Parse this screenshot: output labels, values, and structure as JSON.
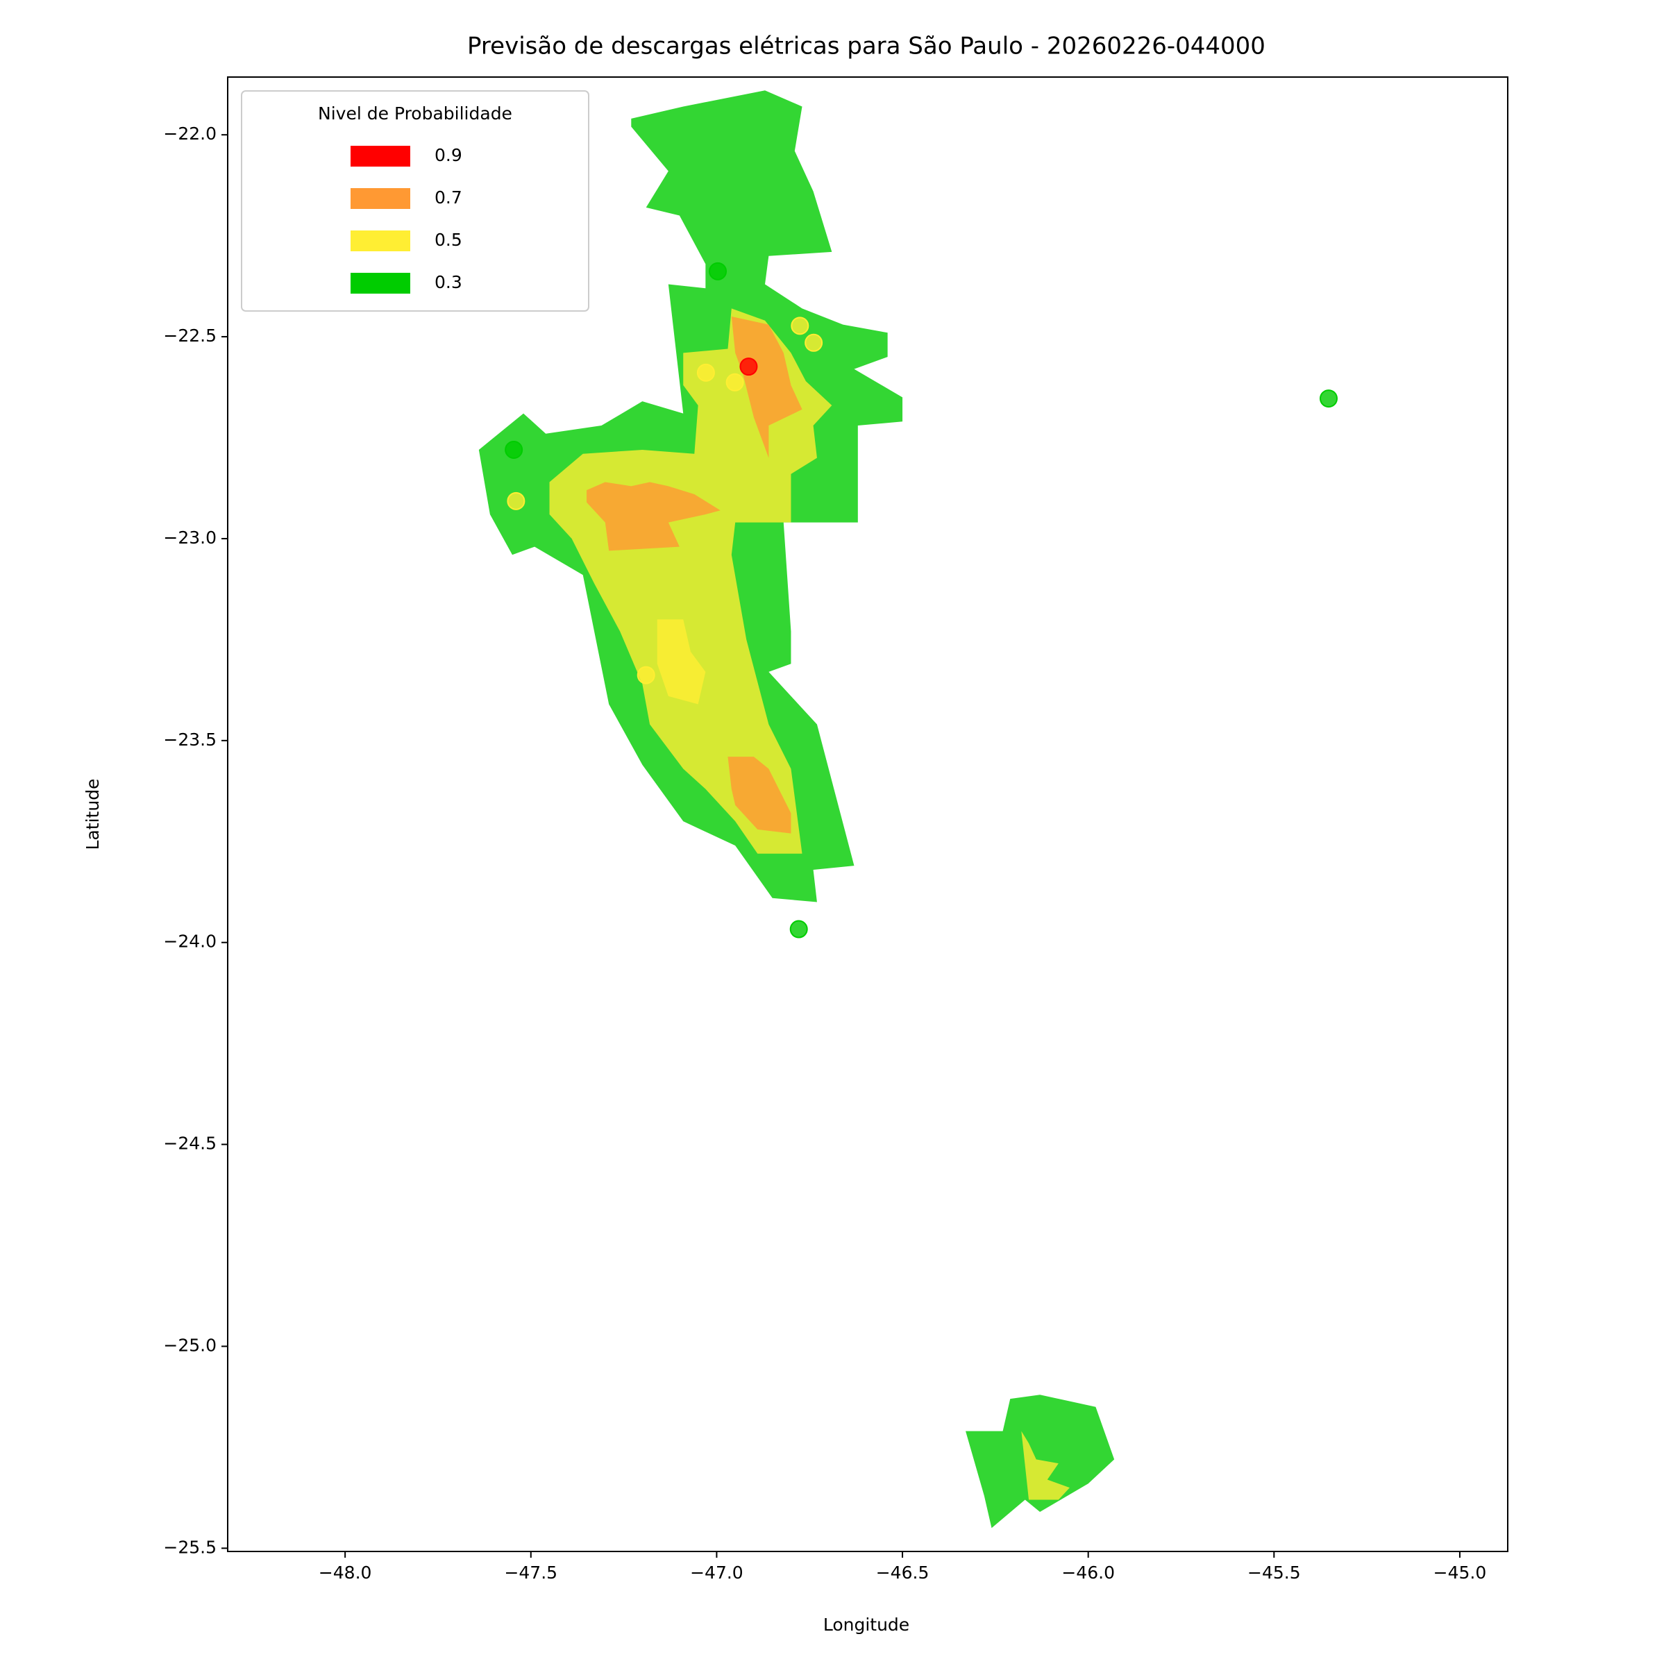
{
  "chart_data": {
    "type": "contour",
    "title": "Previsão de descargas elétricas para São Paulo - 20260226-044000",
    "xlabel": "Longitude",
    "ylabel": "Latitude",
    "xlim": [
      -48.316,
      -44.871
    ],
    "ylim": [
      -25.508,
      -21.857
    ],
    "xticks": [
      {
        "value": -48,
        "label": "−48.0"
      },
      {
        "value": -47.5,
        "label": "−47.5"
      },
      {
        "value": -47,
        "label": "−47.0"
      },
      {
        "value": -46.5,
        "label": "−46.5"
      },
      {
        "value": -46,
        "label": "−46.0"
      },
      {
        "value": -45.5,
        "label": "−45.5"
      },
      {
        "value": -45,
        "label": "−45.0"
      }
    ],
    "yticks": [
      {
        "value": -22,
        "label": "−22.0"
      },
      {
        "value": -22.5,
        "label": "−22.5"
      },
      {
        "value": -23,
        "label": "−23.0"
      },
      {
        "value": -23.5,
        "label": "−23.5"
      },
      {
        "value": -24,
        "label": "−24.0"
      },
      {
        "value": -24.5,
        "label": "−24.5"
      },
      {
        "value": -25,
        "label": "−25.0"
      },
      {
        "value": -25.5,
        "label": "−25.5"
      }
    ],
    "legend": {
      "title": "Nivel de Probabilidade",
      "loc": "upper left"
    },
    "levels": [
      0.9,
      0.7,
      0.5,
      0.3
    ],
    "colors": [
      "#ff0000",
      "#ff9933",
      "#ffee33",
      "#00cc00"
    ],
    "opacity": 0.8,
    "regions": [
      {
        "level": 0.3,
        "points": [
          [
            -47.23,
            -21.96
          ],
          [
            -47.09,
            -21.93
          ],
          [
            -46.87,
            -21.89
          ],
          [
            -46.77,
            -21.93
          ],
          [
            -46.79,
            -22.04
          ],
          [
            -46.74,
            -22.14
          ],
          [
            -46.69,
            -22.29
          ],
          [
            -46.86,
            -22.3
          ],
          [
            -46.87,
            -22.37
          ],
          [
            -46.77,
            -22.43
          ],
          [
            -46.66,
            -22.47
          ],
          [
            -46.54,
            -22.49
          ],
          [
            -46.54,
            -22.55
          ],
          [
            -46.63,
            -22.58
          ],
          [
            -46.5,
            -22.65
          ],
          [
            -46.5,
            -22.71
          ],
          [
            -46.62,
            -22.72
          ],
          [
            -46.62,
            -22.96
          ],
          [
            -46.82,
            -22.96
          ],
          [
            -46.8,
            -23.23
          ],
          [
            -46.8,
            -23.31
          ],
          [
            -46.86,
            -23.33
          ],
          [
            -46.73,
            -23.46
          ],
          [
            -46.63,
            -23.81
          ],
          [
            -46.74,
            -23.82
          ],
          [
            -46.73,
            -23.9
          ],
          [
            -46.85,
            -23.89
          ],
          [
            -46.95,
            -23.76
          ],
          [
            -47.09,
            -23.7
          ],
          [
            -47.2,
            -23.56
          ],
          [
            -47.29,
            -23.41
          ],
          [
            -47.36,
            -23.09
          ],
          [
            -47.49,
            -23.02
          ],
          [
            -47.55,
            -23.04
          ],
          [
            -47.61,
            -22.94
          ],
          [
            -47.64,
            -22.78
          ],
          [
            -47.52,
            -22.69
          ],
          [
            -47.46,
            -22.74
          ],
          [
            -47.31,
            -22.72
          ],
          [
            -47.2,
            -22.66
          ],
          [
            -47.09,
            -22.69
          ],
          [
            -47.13,
            -22.37
          ],
          [
            -47.03,
            -22.38
          ],
          [
            -47.03,
            -22.32
          ],
          [
            -47.1,
            -22.2
          ],
          [
            -47.19,
            -22.18
          ],
          [
            -47.13,
            -22.09
          ],
          [
            -47.23,
            -21.98
          ]
        ]
      },
      {
        "level": 0.3,
        "points": [
          [
            -46.33,
            -25.21
          ],
          [
            -46.23,
            -25.21
          ],
          [
            -46.21,
            -25.13
          ],
          [
            -46.13,
            -25.12
          ],
          [
            -45.98,
            -25.15
          ],
          [
            -45.93,
            -25.28
          ],
          [
            -46.0,
            -25.34
          ],
          [
            -46.13,
            -25.41
          ],
          [
            -46.17,
            -25.38
          ],
          [
            -46.26,
            -25.45
          ],
          [
            -46.28,
            -25.37
          ]
        ]
      },
      {
        "level": 0.5,
        "points": [
          [
            -47.09,
            -22.54
          ],
          [
            -46.97,
            -22.53
          ],
          [
            -46.96,
            -22.43
          ],
          [
            -46.87,
            -22.46
          ],
          [
            -46.8,
            -22.54
          ],
          [
            -46.76,
            -22.61
          ],
          [
            -46.69,
            -22.67
          ],
          [
            -46.74,
            -22.72
          ],
          [
            -46.73,
            -22.8
          ],
          [
            -46.8,
            -22.84
          ],
          [
            -46.8,
            -22.96
          ],
          [
            -46.95,
            -22.96
          ],
          [
            -46.96,
            -23.04
          ],
          [
            -46.92,
            -23.25
          ],
          [
            -46.86,
            -23.46
          ],
          [
            -46.8,
            -23.57
          ],
          [
            -46.77,
            -23.78
          ],
          [
            -46.89,
            -23.78
          ],
          [
            -46.95,
            -23.7
          ],
          [
            -47.03,
            -23.62
          ],
          [
            -47.09,
            -23.57
          ],
          [
            -47.18,
            -23.46
          ],
          [
            -47.2,
            -23.36
          ],
          [
            -47.26,
            -23.23
          ],
          [
            -47.33,
            -23.11
          ],
          [
            -47.39,
            -23.0
          ],
          [
            -47.45,
            -22.94
          ],
          [
            -47.45,
            -22.86
          ],
          [
            -47.36,
            -22.79
          ],
          [
            -47.2,
            -22.78
          ],
          [
            -47.06,
            -22.79
          ],
          [
            -47.05,
            -22.67
          ],
          [
            -47.09,
            -22.62
          ]
        ]
      },
      {
        "level": 0.5,
        "points": [
          [
            -47.16,
            -23.2
          ],
          [
            -47.09,
            -23.2
          ],
          [
            -47.07,
            -23.28
          ],
          [
            -47.03,
            -23.33
          ],
          [
            -47.05,
            -23.41
          ],
          [
            -47.13,
            -23.39
          ],
          [
            -47.16,
            -23.31
          ]
        ]
      },
      {
        "level": 0.5,
        "points": [
          [
            -46.18,
            -25.21
          ],
          [
            -46.16,
            -25.24
          ],
          [
            -46.14,
            -25.28
          ],
          [
            -46.08,
            -25.29
          ],
          [
            -46.11,
            -25.33
          ],
          [
            -46.05,
            -25.35
          ],
          [
            -46.08,
            -25.38
          ],
          [
            -46.16,
            -25.38
          ]
        ]
      },
      {
        "level": 0.7,
        "points": [
          [
            -46.96,
            -22.45
          ],
          [
            -46.86,
            -22.47
          ],
          [
            -46.82,
            -22.54
          ],
          [
            -46.8,
            -22.62
          ],
          [
            -46.77,
            -22.68
          ],
          [
            -46.86,
            -22.72
          ],
          [
            -46.86,
            -22.8
          ],
          [
            -46.9,
            -22.7
          ],
          [
            -46.93,
            -22.59
          ],
          [
            -46.95,
            -22.54
          ]
        ]
      },
      {
        "level": 0.7,
        "points": [
          [
            -47.35,
            -22.88
          ],
          [
            -47.3,
            -22.86
          ],
          [
            -47.23,
            -22.87
          ],
          [
            -47.18,
            -22.86
          ],
          [
            -47.13,
            -22.87
          ],
          [
            -47.06,
            -22.89
          ],
          [
            -46.99,
            -22.93
          ],
          [
            -47.03,
            -22.94
          ],
          [
            -47.13,
            -22.96
          ],
          [
            -47.1,
            -23.02
          ],
          [
            -47.29,
            -23.03
          ],
          [
            -47.3,
            -22.96
          ],
          [
            -47.35,
            -22.91
          ]
        ]
      },
      {
        "level": 0.7,
        "points": [
          [
            -46.97,
            -23.54
          ],
          [
            -46.9,
            -23.54
          ],
          [
            -46.86,
            -23.57
          ],
          [
            -46.8,
            -23.68
          ],
          [
            -46.8,
            -23.73
          ],
          [
            -46.89,
            -23.72
          ],
          [
            -46.95,
            -23.66
          ],
          [
            -46.96,
            -23.62
          ]
        ]
      }
    ],
    "points": {
      "x": [
        -46.997,
        -45.353,
        -47.546,
        -46.779,
        -46.776,
        -46.739,
        -47.029,
        -46.951,
        -47.54,
        -47.19,
        -46.914
      ],
      "y": [
        -22.338,
        -22.653,
        -22.78,
        -23.967,
        -22.473,
        -22.515,
        -22.589,
        -22.613,
        -22.907,
        -23.338,
        -22.574
      ],
      "level": [
        0.3,
        0.3,
        0.3,
        0.3,
        0.5,
        0.5,
        0.5,
        0.5,
        0.5,
        0.5,
        0.9
      ]
    }
  }
}
